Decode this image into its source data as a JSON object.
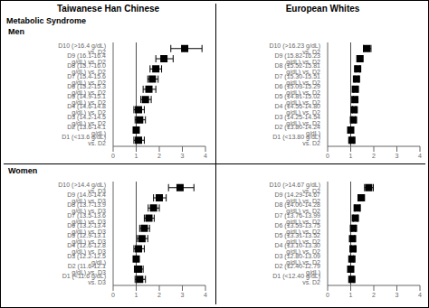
{
  "chart_data": [
    {
      "type": "forest",
      "title": "Taiwanese Han Chinese",
      "subtitle": "Metabolic Syndrome",
      "annotations": [
        "Men"
      ],
      "categories": [
        "D10 (>16.4 g/dL) vs. D2",
        "D9 (16.1-16.4 g/dL) vs. D2",
        "D8 (15.7-16.0 g/dL) vs. D2",
        "D7 (15.4-15.6 g/dL) vs. D2",
        "D6 (15.2-15.3 g/dL) vs. D2",
        "D5 (14.9-15.1 g/dL) vs. D2",
        "D4 (14.6-14.8 g/dL) vs. D2",
        "D3 (14.2-14.5 g/dL) vs. D2",
        "D2 (13.6-14.1 g/dL)",
        "D1 (<13.6 g/dL) vs. D2"
      ],
      "values": [
        3.1,
        2.2,
        1.85,
        1.7,
        1.55,
        1.4,
        1.1,
        1.15,
        1.0,
        1.1
      ],
      "ci_low": [
        2.5,
        1.85,
        1.6,
        1.5,
        1.3,
        1.2,
        0.9,
        0.95,
        1.0,
        0.9
      ],
      "ci_high": [
        3.85,
        2.6,
        2.1,
        1.95,
        1.85,
        1.65,
        1.35,
        1.4,
        1.0,
        1.35
      ],
      "reference_x": 1.0,
      "color": "#000000",
      "marker": "square",
      "xlim": [
        0.0,
        4.0
      ],
      "xticks": [
        0,
        1,
        2,
        3,
        4
      ]
    },
    {
      "type": "forest",
      "title": "European Whites",
      "categories": [
        "D10 (>16.23 g/dL) vs. D2",
        "D9 (15.82-16.23 g/dL) vs. D2",
        "D8 (15.52-15.81 g/dL) vs. D2",
        "D7 (15.30-15.51 g/dL) vs. D2",
        "D6 (15.03-15.29 g/dL) vs. D2",
        "D5 (14.81-15.02 g/dL) vs. D2",
        "D4 (14.55-14.80 g/dL) vs. D2",
        "D3 (14.25-14.54 g/dL) vs. D2",
        "D2 (13.80-14.24 g/dL)",
        "D1 (<13.80 g/dL) vs. D2"
      ],
      "values": [
        1.7,
        1.4,
        1.3,
        1.25,
        1.2,
        1.18,
        1.15,
        1.12,
        1.0,
        1.05
      ],
      "ci_low": [
        1.55,
        1.3,
        1.22,
        1.18,
        1.13,
        1.12,
        1.08,
        1.06,
        1.0,
        0.98
      ],
      "ci_high": [
        1.88,
        1.52,
        1.4,
        1.34,
        1.28,
        1.25,
        1.22,
        1.19,
        1.0,
        1.13
      ],
      "reference_x": 1.0,
      "color": "#000000",
      "marker": "square",
      "xlim": [
        0.0,
        4.0
      ],
      "xticks": [
        0,
        1,
        2,
        3,
        4
      ]
    },
    {
      "type": "forest",
      "annotations": [
        "Women"
      ],
      "categories": [
        "D10 (>14.4 g/dL) vs. D3",
        "D9 (14.0-14.4 g/dL) vs. D3",
        "D8 (13.7-13.9 g/dL) vs. D3",
        "D7 (13.5-13.6 g/dL) vs. D3",
        "D6 (13.2-13.4 g/dL) vs. D3",
        "D5 (12.9-13.1 g/dL) vs. D3",
        "D4 (12.6-12.8 g/dL) vs. D3",
        "D3 (12.2-12.5 g/dL)",
        "D2 (11.6-12.1 g/dL) vs. D3",
        "D1 (<11.6 g/dL) vs. D3"
      ],
      "values": [
        2.9,
        2.0,
        1.75,
        1.55,
        1.35,
        1.25,
        1.1,
        1.0,
        1.1,
        1.15
      ],
      "ci_low": [
        2.4,
        1.75,
        1.52,
        1.35,
        1.15,
        1.05,
        0.9,
        1.0,
        0.92,
        0.95
      ],
      "ci_high": [
        3.5,
        2.3,
        2.0,
        1.78,
        1.58,
        1.5,
        1.35,
        1.0,
        1.3,
        1.4
      ],
      "reference_x": 1.0,
      "color": "#000000",
      "marker": "square",
      "xlim": [
        0.0,
        4.0
      ],
      "xticks": [
        0,
        1,
        2,
        3,
        4
      ]
    },
    {
      "type": "forest",
      "categories": [
        "D10 (>14.67 g/dL) vs. D2",
        "D9 (14.29-14.67 g/dL) vs. D2",
        "D8 (14.00-14.28 g/dL) vs. D2",
        "D7 (13.76-13.99 g/dL) vs. D2",
        "D6 (13.53-13.75 g/dL) vs. D2",
        "D5 (13.31-13.52 g/dL) vs. D2",
        "D4 (13.10-13.30 g/dL) vs. D2",
        "D3 (12.80-13.09 g/dL) vs. D2",
        "D2 (12.40-12.79 g/dL)",
        "D1 (<12.40 g/dL) vs. D2"
      ],
      "values": [
        1.78,
        1.45,
        1.28,
        1.2,
        1.12,
        1.08,
        1.1,
        1.05,
        1.0,
        1.05
      ],
      "ci_low": [
        1.6,
        1.32,
        1.18,
        1.12,
        1.05,
        1.01,
        1.03,
        0.99,
        1.0,
        0.98
      ],
      "ci_high": [
        1.98,
        1.6,
        1.4,
        1.29,
        1.2,
        1.16,
        1.18,
        1.12,
        1.0,
        1.13
      ],
      "reference_x": 1.0,
      "color": "#000000",
      "marker": "square",
      "xlim": [
        0.0,
        4.0
      ],
      "xticks": [
        0,
        1,
        2,
        3,
        4
      ]
    }
  ]
}
